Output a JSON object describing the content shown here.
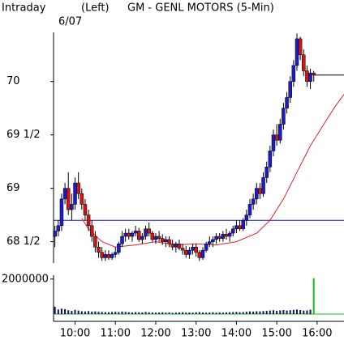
{
  "chart_data": [
    {
      "type": "candlestick",
      "subtitle": "Intraday",
      "axis_side": "(Left)",
      "title": "GM - GENL MOTORS (5-Min)",
      "date": "6/07",
      "x": [
        570,
        575,
        580,
        585,
        590,
        595,
        600,
        605,
        610,
        615,
        620,
        625,
        630,
        635,
        640,
        645,
        650,
        655,
        660,
        665,
        670,
        675,
        680,
        685,
        690,
        695,
        700,
        705,
        710,
        715,
        720,
        725,
        730,
        735,
        740,
        745,
        750,
        755,
        760,
        765,
        770,
        775,
        780,
        785,
        790,
        795,
        800,
        805,
        810,
        815,
        820,
        825,
        830,
        835,
        840,
        845,
        850,
        855,
        860,
        865,
        870,
        875,
        880,
        885,
        890,
        895,
        900,
        905,
        910,
        915,
        920,
        925,
        930,
        935,
        940,
        945,
        950,
        955
      ],
      "open": [
        68.55,
        68.6,
        68.65,
        68.9,
        69.0,
        68.8,
        68.85,
        69.05,
        68.95,
        68.85,
        68.75,
        68.65,
        68.55,
        68.45,
        68.4,
        68.35,
        68.38,
        68.35,
        68.38,
        68.4,
        68.48,
        68.55,
        68.58,
        68.55,
        68.58,
        68.6,
        68.52,
        68.55,
        68.62,
        68.58,
        68.52,
        68.55,
        68.53,
        68.5,
        68.52,
        68.48,
        68.45,
        68.48,
        68.44,
        68.42,
        68.38,
        68.42,
        68.45,
        68.4,
        68.35,
        68.42,
        68.48,
        68.5,
        68.52,
        68.55,
        68.53,
        68.57,
        68.55,
        68.58,
        68.62,
        68.65,
        68.62,
        68.7,
        68.75,
        68.85,
        68.9,
        69.0,
        68.95,
        69.1,
        69.2,
        69.35,
        69.5,
        69.45,
        69.6,
        69.75,
        69.85,
        70.0,
        70.15,
        70.4,
        70.25,
        70.1,
        70.0,
        70.08
      ],
      "high": [
        68.65,
        68.7,
        68.95,
        69.05,
        69.15,
        68.95,
        69.1,
        69.15,
        69.0,
        68.9,
        68.8,
        68.7,
        68.6,
        68.5,
        68.45,
        68.42,
        68.42,
        68.4,
        68.45,
        68.5,
        68.6,
        68.62,
        68.62,
        68.6,
        68.65,
        68.63,
        68.58,
        68.65,
        68.68,
        68.6,
        68.58,
        68.6,
        68.57,
        68.55,
        68.55,
        68.52,
        68.5,
        68.52,
        68.48,
        68.46,
        68.45,
        68.48,
        68.48,
        68.42,
        68.45,
        68.5,
        68.55,
        68.55,
        68.58,
        68.58,
        68.6,
        68.62,
        68.6,
        68.65,
        68.7,
        68.7,
        68.72,
        68.8,
        68.9,
        68.95,
        69.05,
        69.05,
        69.15,
        69.25,
        69.4,
        69.55,
        69.6,
        69.65,
        69.8,
        69.9,
        70.05,
        70.2,
        70.45,
        70.42,
        70.3,
        70.15,
        70.12,
        70.1
      ],
      "low": [
        68.45,
        68.55,
        68.6,
        68.85,
        68.75,
        68.7,
        68.8,
        68.9,
        68.8,
        68.7,
        68.6,
        68.5,
        68.4,
        68.35,
        68.32,
        68.32,
        68.33,
        68.33,
        68.35,
        68.38,
        68.45,
        68.5,
        68.52,
        68.5,
        68.55,
        68.5,
        68.48,
        68.52,
        68.55,
        68.5,
        68.48,
        68.5,
        68.47,
        68.45,
        68.45,
        68.42,
        68.4,
        68.42,
        68.38,
        68.35,
        68.34,
        68.38,
        68.36,
        68.32,
        68.33,
        68.4,
        68.45,
        68.45,
        68.48,
        68.5,
        68.5,
        68.52,
        68.5,
        68.55,
        68.58,
        68.6,
        68.6,
        68.65,
        68.72,
        68.8,
        68.85,
        68.9,
        68.92,
        69.05,
        69.15,
        69.3,
        69.4,
        69.42,
        69.55,
        69.7,
        69.8,
        69.95,
        70.1,
        70.2,
        70.05,
        69.95,
        69.93,
        70.0
      ],
      "close": [
        68.6,
        68.65,
        68.9,
        69.0,
        68.8,
        68.85,
        69.05,
        68.95,
        68.85,
        68.75,
        68.65,
        68.55,
        68.45,
        68.4,
        68.35,
        68.38,
        68.35,
        68.38,
        68.4,
        68.48,
        68.55,
        68.58,
        68.55,
        68.58,
        68.6,
        68.52,
        68.55,
        68.62,
        68.58,
        68.52,
        68.55,
        68.53,
        68.5,
        68.52,
        68.48,
        68.45,
        68.48,
        68.44,
        68.42,
        68.38,
        68.42,
        68.45,
        68.4,
        68.35,
        68.42,
        68.48,
        68.5,
        68.52,
        68.55,
        68.53,
        68.57,
        68.55,
        68.58,
        68.62,
        68.65,
        68.62,
        68.7,
        68.75,
        68.85,
        68.9,
        69.0,
        68.95,
        69.1,
        69.2,
        69.35,
        69.5,
        69.45,
        69.6,
        69.75,
        69.85,
        70.0,
        70.15,
        70.4,
        70.25,
        70.1,
        70.0,
        70.08,
        70.06
      ],
      "up_color": "#1c1cc8",
      "down_color": "#d41414",
      "ma": {
        "color": "#e02020",
        "x": [
          610,
          620,
          640,
          660,
          690,
          720,
          750,
          780,
          810,
          840,
          870,
          890,
          910,
          930,
          950,
          970,
          985,
          1000
        ],
        "values": [
          68.72,
          68.62,
          68.5,
          68.45,
          68.47,
          68.5,
          68.47,
          68.48,
          68.47,
          68.5,
          68.58,
          68.7,
          68.9,
          69.15,
          69.4,
          69.6,
          69.75,
          69.88
        ]
      },
      "reference_line": 68.7,
      "reference_color": "#1010c0",
      "last_price": 70.06,
      "xlim": [
        568,
        1000
      ],
      "xticks": [
        {
          "value": 600,
          "label": "10:00"
        },
        {
          "value": 660,
          "label": "11:00"
        },
        {
          "value": 720,
          "label": "12:00"
        },
        {
          "value": 780,
          "label": "13:00"
        },
        {
          "value": 840,
          "label": "14:00"
        },
        {
          "value": 900,
          "label": "15:00"
        },
        {
          "value": 960,
          "label": "16:00"
        }
      ],
      "ylim": [
        68.3,
        70.46
      ],
      "yticks": [
        {
          "value": 68.5,
          "label": "68 1/2"
        },
        69,
        {
          "value": 69.5,
          "label": "69 1/2"
        },
        70
      ]
    },
    {
      "type": "bar",
      "values": [
        420000,
        260000,
        310000,
        280000,
        220000,
        180000,
        240000,
        200000,
        160000,
        150000,
        170000,
        140000,
        150000,
        130000,
        120000,
        110000,
        100000,
        120000,
        130000,
        110000,
        140000,
        120000,
        100000,
        90000,
        110000,
        100000,
        90000,
        120000,
        100000,
        90000,
        80000,
        90000,
        100000,
        80000,
        90000,
        70000,
        80000,
        90000,
        100000,
        80000,
        90000,
        80000,
        100000,
        110000,
        90000,
        80000,
        90000,
        100000,
        80000,
        90000,
        80000,
        90000,
        100000,
        110000,
        120000,
        100000,
        110000,
        130000,
        150000,
        140000,
        160000,
        150000,
        170000,
        180000,
        200000,
        220000,
        190000,
        210000,
        230000,
        200000,
        220000,
        240000,
        260000,
        230000,
        200000,
        210000,
        250000,
        2050000
      ],
      "color": "#101060",
      "last_color": "#10c010",
      "ylim": [
        0,
        2220000
      ],
      "yticks": [
        2000000
      ]
    }
  ]
}
